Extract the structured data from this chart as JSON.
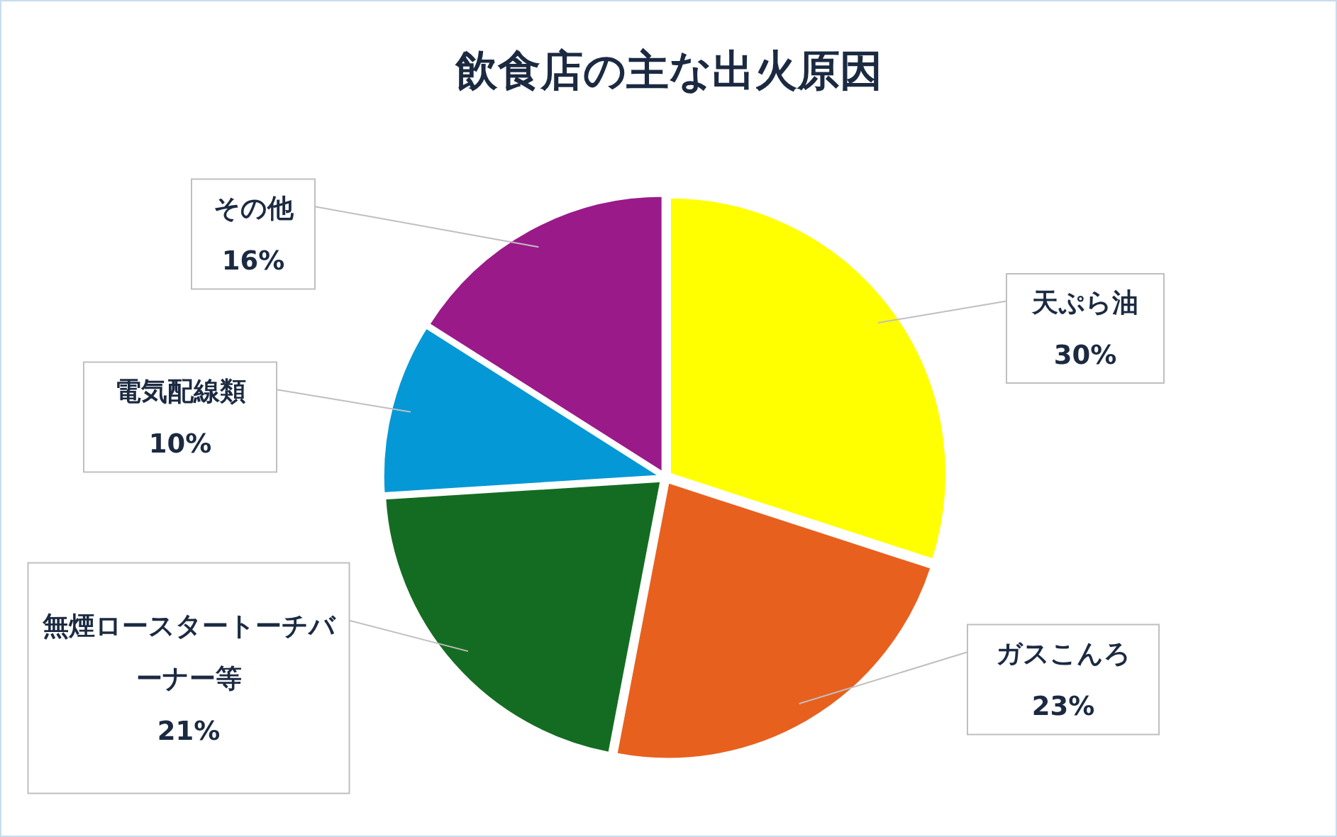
{
  "chart_data": {
    "type": "pie",
    "title": "飲食店の主な出火原因",
    "categories": [
      "天ぷら油",
      "ガスこんろ",
      "無煙ロースタートーチバーナー等",
      "電気配線類",
      "その他"
    ],
    "value_labels": [
      "30%",
      "23%",
      "21%",
      "10%",
      "16%"
    ],
    "values": [
      30,
      23,
      21,
      10,
      16
    ],
    "colors": [
      "#ffff00",
      "#e8601e",
      "#146c22",
      "#0598d6",
      "#9a1a8a"
    ],
    "data_labels": true
  }
}
